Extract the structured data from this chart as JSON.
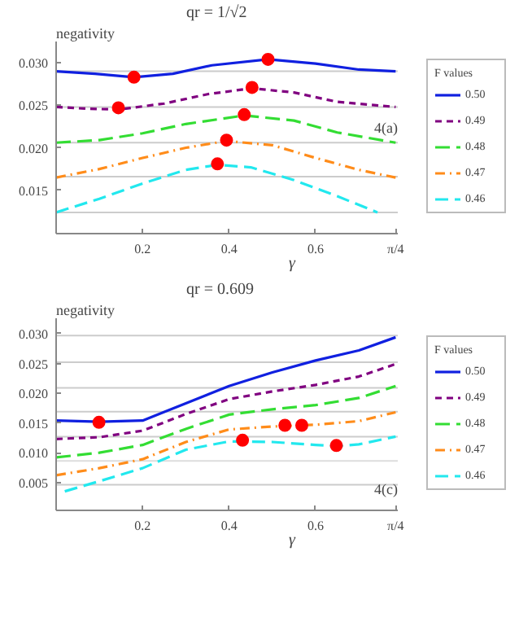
{
  "chart_data": [
    {
      "type": "line",
      "title": "qr = 1/√2",
      "ylabel": "negativity",
      "xlabel": "γ",
      "legend_title": "F values",
      "legend": "right",
      "grid": false,
      "xlim": [
        0,
        0.79
      ],
      "xticks": [
        0.2,
        0.4,
        0.6,
        {
          "value": 0.785,
          "label": "π/4"
        }
      ],
      "ylim": [
        0.0099,
        0.0325
      ],
      "yticks": [
        {
          "value": 0.015,
          "label": "0.015"
        },
        {
          "value": 0.02,
          "label": "0.020"
        },
        {
          "value": 0.025,
          "label": "0.025"
        },
        {
          "value": 0.03,
          "label": "0.030"
        }
      ],
      "annotations": [
        "4(a)"
      ],
      "ref_lines": [
        {
          "axis": "y",
          "value": 0.029,
          "color": "#cccccc"
        },
        {
          "axis": "y",
          "value": 0.0248,
          "color": "#cccccc"
        },
        {
          "axis": "y",
          "value": 0.0206,
          "color": "#cccccc"
        },
        {
          "axis": "y",
          "value": 0.0166,
          "color": "#cccccc"
        },
        {
          "axis": "y",
          "value": 0.0124,
          "color": "#cccccc"
        }
      ],
      "series": [
        {
          "name": "0.50",
          "color": "#1020e0",
          "line_style": "solid",
          "x": [
            0,
            0.09,
            0.18,
            0.27,
            0.36,
            0.49,
            0.6,
            0.7,
            0.785
          ],
          "values": [
            0.029,
            0.0287,
            0.0283,
            0.0287,
            0.0297,
            0.0304,
            0.0299,
            0.0292,
            0.029
          ]
        },
        {
          "name": "0.49",
          "color": "#800080",
          "line_style": "dashed",
          "x": [
            0,
            0.07,
            0.144,
            0.25,
            0.35,
            0.453,
            0.55,
            0.65,
            0.785
          ],
          "values": [
            0.0248,
            0.0246,
            0.0245,
            0.0252,
            0.0263,
            0.027,
            0.0265,
            0.0254,
            0.0248
          ]
        },
        {
          "name": "0.48",
          "color": "#33dd33",
          "line_style": "dashed",
          "x": [
            0,
            0.1,
            0.2,
            0.3,
            0.435,
            0.55,
            0.65,
            0.785
          ],
          "values": [
            0.0206,
            0.0209,
            0.0217,
            0.0228,
            0.0238,
            0.0232,
            0.0218,
            0.0206
          ]
        },
        {
          "name": "0.47",
          "color": "#ff8c1a",
          "line_style": "dashed",
          "x": [
            0,
            0.1,
            0.2,
            0.3,
            0.394,
            0.5,
            0.6,
            0.7,
            0.785
          ],
          "values": [
            0.0165,
            0.0175,
            0.0188,
            0.02,
            0.0208,
            0.0203,
            0.0188,
            0.0174,
            0.0165
          ]
        },
        {
          "name": "0.46",
          "color": "#22e8ee",
          "line_style": "dashed",
          "x": [
            0,
            0.1,
            0.2,
            0.3,
            0.373,
            0.45,
            0.55,
            0.65,
            0.743
          ],
          "values": [
            0.0124,
            0.014,
            0.0158,
            0.0174,
            0.018,
            0.0177,
            0.0162,
            0.0143,
            0.0124
          ]
        },
        {
          "type": "scatter",
          "marker": "circle",
          "color": "#ff0000",
          "x": [
            0.18,
            0.49,
            0.144,
            0.453,
            0.435,
            0.394,
            0.373
          ],
          "values": [
            0.0283,
            0.0304,
            0.0247,
            0.0271,
            0.0239,
            0.0209,
            0.0181
          ]
        }
      ]
    },
    {
      "type": "line",
      "title": "qr = 0.609",
      "ylabel": "negativity",
      "xlabel": "γ",
      "legend_title": "F values",
      "legend": "right",
      "grid": false,
      "xlim": [
        0,
        0.79
      ],
      "xticks": [
        0.2,
        0.4,
        0.6,
        {
          "value": 0.785,
          "label": "π/4"
        }
      ],
      "ylim": [
        0.0003,
        0.0326
      ],
      "yticks": [
        {
          "value": 0.005,
          "label": "0.005"
        },
        {
          "value": 0.01,
          "label": "0.010"
        },
        {
          "value": 0.015,
          "label": "0.015"
        },
        {
          "value": 0.02,
          "label": "0.020"
        },
        {
          "value": 0.025,
          "label": "0.025"
        },
        {
          "value": 0.03,
          "label": "0.030"
        }
      ],
      "annotations": [
        "4(c)"
      ],
      "ref_lines": [
        {
          "axis": "y",
          "value": 0.0297,
          "color": "#cccccc"
        },
        {
          "axis": "y",
          "value": 0.0252,
          "color": "#cccccc"
        },
        {
          "axis": "y",
          "value": 0.0209,
          "color": "#cccccc"
        },
        {
          "axis": "y",
          "value": 0.0169,
          "color": "#cccccc"
        },
        {
          "axis": "y",
          "value": 0.0127,
          "color": "#cccccc"
        },
        {
          "axis": "y",
          "value": 0.0086,
          "color": "#dddddd"
        },
        {
          "axis": "y",
          "value": 0.0046,
          "color": "#cccccc"
        }
      ],
      "series": [
        {
          "name": "0.50",
          "color": "#1020e0",
          "line_style": "solid",
          "x": [
            0,
            0.1,
            0.2,
            0.3,
            0.4,
            0.5,
            0.6,
            0.7,
            0.785
          ],
          "values": [
            0.0154,
            0.0152,
            0.0154,
            0.0183,
            0.0212,
            0.0235,
            0.0255,
            0.0272,
            0.0294
          ]
        },
        {
          "name": "0.49",
          "color": "#800080",
          "line_style": "dashed",
          "x": [
            0,
            0.1,
            0.2,
            0.3,
            0.4,
            0.5,
            0.6,
            0.7,
            0.785
          ],
          "values": [
            0.0123,
            0.0126,
            0.0137,
            0.0165,
            0.019,
            0.0203,
            0.0214,
            0.0228,
            0.0249
          ]
        },
        {
          "name": "0.48",
          "color": "#33dd33",
          "line_style": "dashed",
          "x": [
            0,
            0.1,
            0.2,
            0.3,
            0.4,
            0.5,
            0.6,
            0.7,
            0.785
          ],
          "values": [
            0.0092,
            0.01,
            0.0113,
            0.014,
            0.0164,
            0.0173,
            0.018,
            0.0192,
            0.0212
          ]
        },
        {
          "name": "0.47",
          "color": "#ff8c1a",
          "line_style": "dashed",
          "x": [
            0,
            0.1,
            0.2,
            0.3,
            0.4,
            0.5,
            0.6,
            0.7,
            0.785
          ],
          "values": [
            0.0062,
            0.0074,
            0.0089,
            0.0118,
            0.0139,
            0.0144,
            0.0147,
            0.0153,
            0.0168
          ]
        },
        {
          "name": "0.46",
          "color": "#22e8ee",
          "line_style": "dashed",
          "x": [
            0.02,
            0.1,
            0.2,
            0.3,
            0.4,
            0.5,
            0.6,
            0.65,
            0.7,
            0.785
          ],
          "values": [
            0.0035,
            0.0052,
            0.0074,
            0.0105,
            0.0119,
            0.0118,
            0.0113,
            0.0111,
            0.0114,
            0.0127
          ]
        },
        {
          "type": "scatter",
          "marker": "circle",
          "color": "#ff0000",
          "x": [
            0.099,
            0.431,
            0.529,
            0.568,
            0.648
          ],
          "values": [
            0.0151,
            0.0121,
            0.0146,
            0.0146,
            0.0112
          ]
        }
      ]
    }
  ]
}
